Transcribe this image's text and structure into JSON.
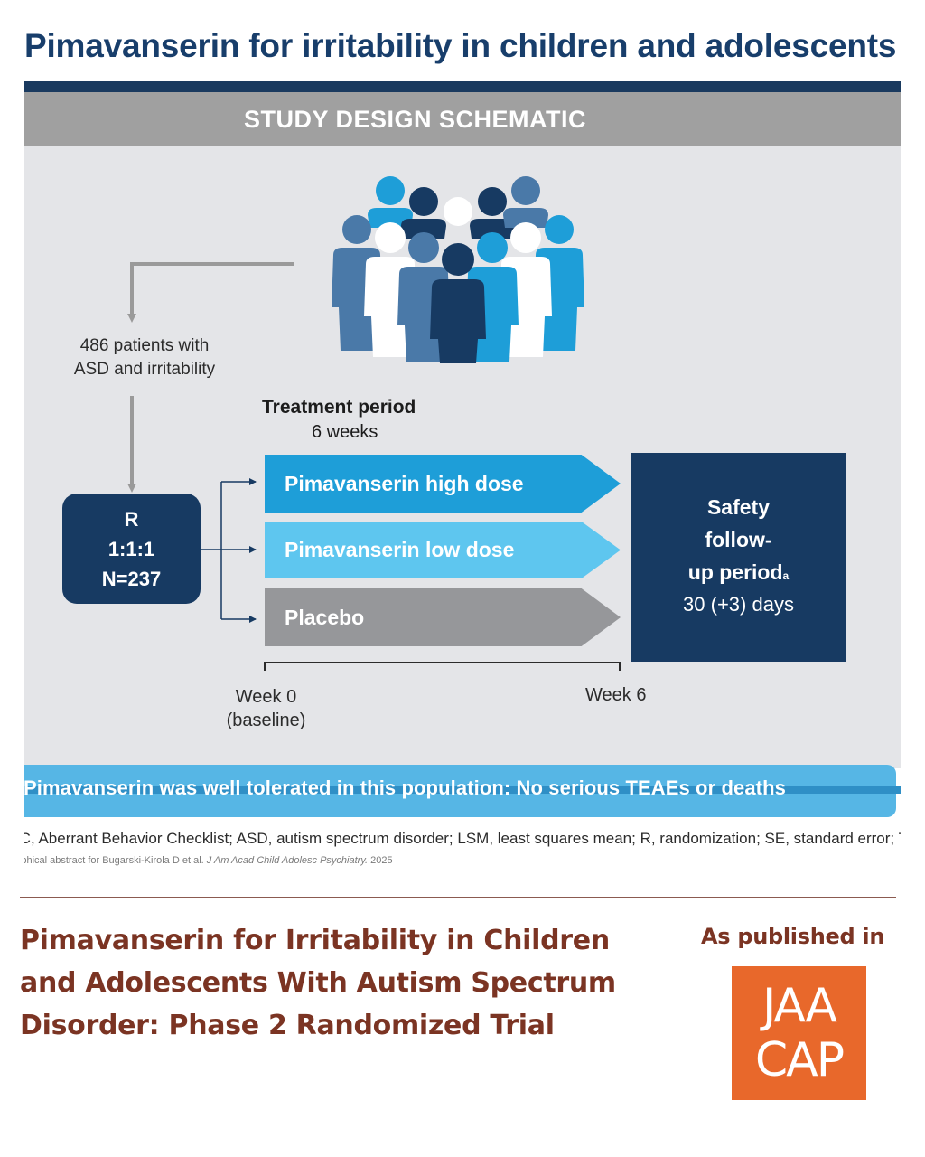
{
  "abstract": {
    "headline": "Pimavanserin for irritability in children and adolescents",
    "section_header": "STUDY DESIGN SCHEMATIC",
    "patients_line1": "486 patients with",
    "patients_line2": "ASD and irritability",
    "randomization": {
      "line1": "R",
      "line2": "1:1:1",
      "line3": "N=237"
    },
    "treatment_title": "Treatment period",
    "treatment_duration": "6 weeks",
    "arms": [
      {
        "label": "Pimavanserin high dose",
        "color": "#1e9ed8"
      },
      {
        "label": "Pimavanserin low dose",
        "color": "#5ec6ef"
      },
      {
        "label": "Placebo",
        "color": "#96979a"
      }
    ],
    "safety": {
      "line1": "Safety",
      "line2": "follow-",
      "line3": "up period",
      "footnote_mark": "a",
      "line4": "30 (+3) days"
    },
    "timeline": {
      "start_line1": "Week 0",
      "start_line2": "(baseline)",
      "end": "Week 6"
    },
    "banner": "Pimavanserin was well tolerated in this population: No serious TEAEs or deaths",
    "abbreviations": "ABC, Aberrant Behavior Checklist; ASD, autism spectrum disorder; LSM, least squares mean; R, randomization; SE, standard error; TEAE, treatment-emergent adverse event.",
    "citation_prefix": "Graphical abstract for Bugarski-Kirola D et al.",
    "citation_journal": "J Am Acad Child Adolesc Psychiatry.",
    "citation_year": "2025"
  },
  "footer": {
    "paper_title": "Pimavanserin for Irritability in Children and Adolescents With Autism Spectrum Disorder: Phase 2 Randomized Trial",
    "published_label": "As published in",
    "logo_line1": "JAA",
    "logo_line2": "CAP"
  },
  "colors": {
    "navy": "#173a62",
    "headline_blue": "#183e6b",
    "high_dose": "#1e9ed8",
    "low_dose": "#5ec6ef",
    "placebo": "#96979a",
    "banner": "#56b6e5",
    "footer_text": "#7b3423",
    "logo_orange": "#e8682b"
  }
}
